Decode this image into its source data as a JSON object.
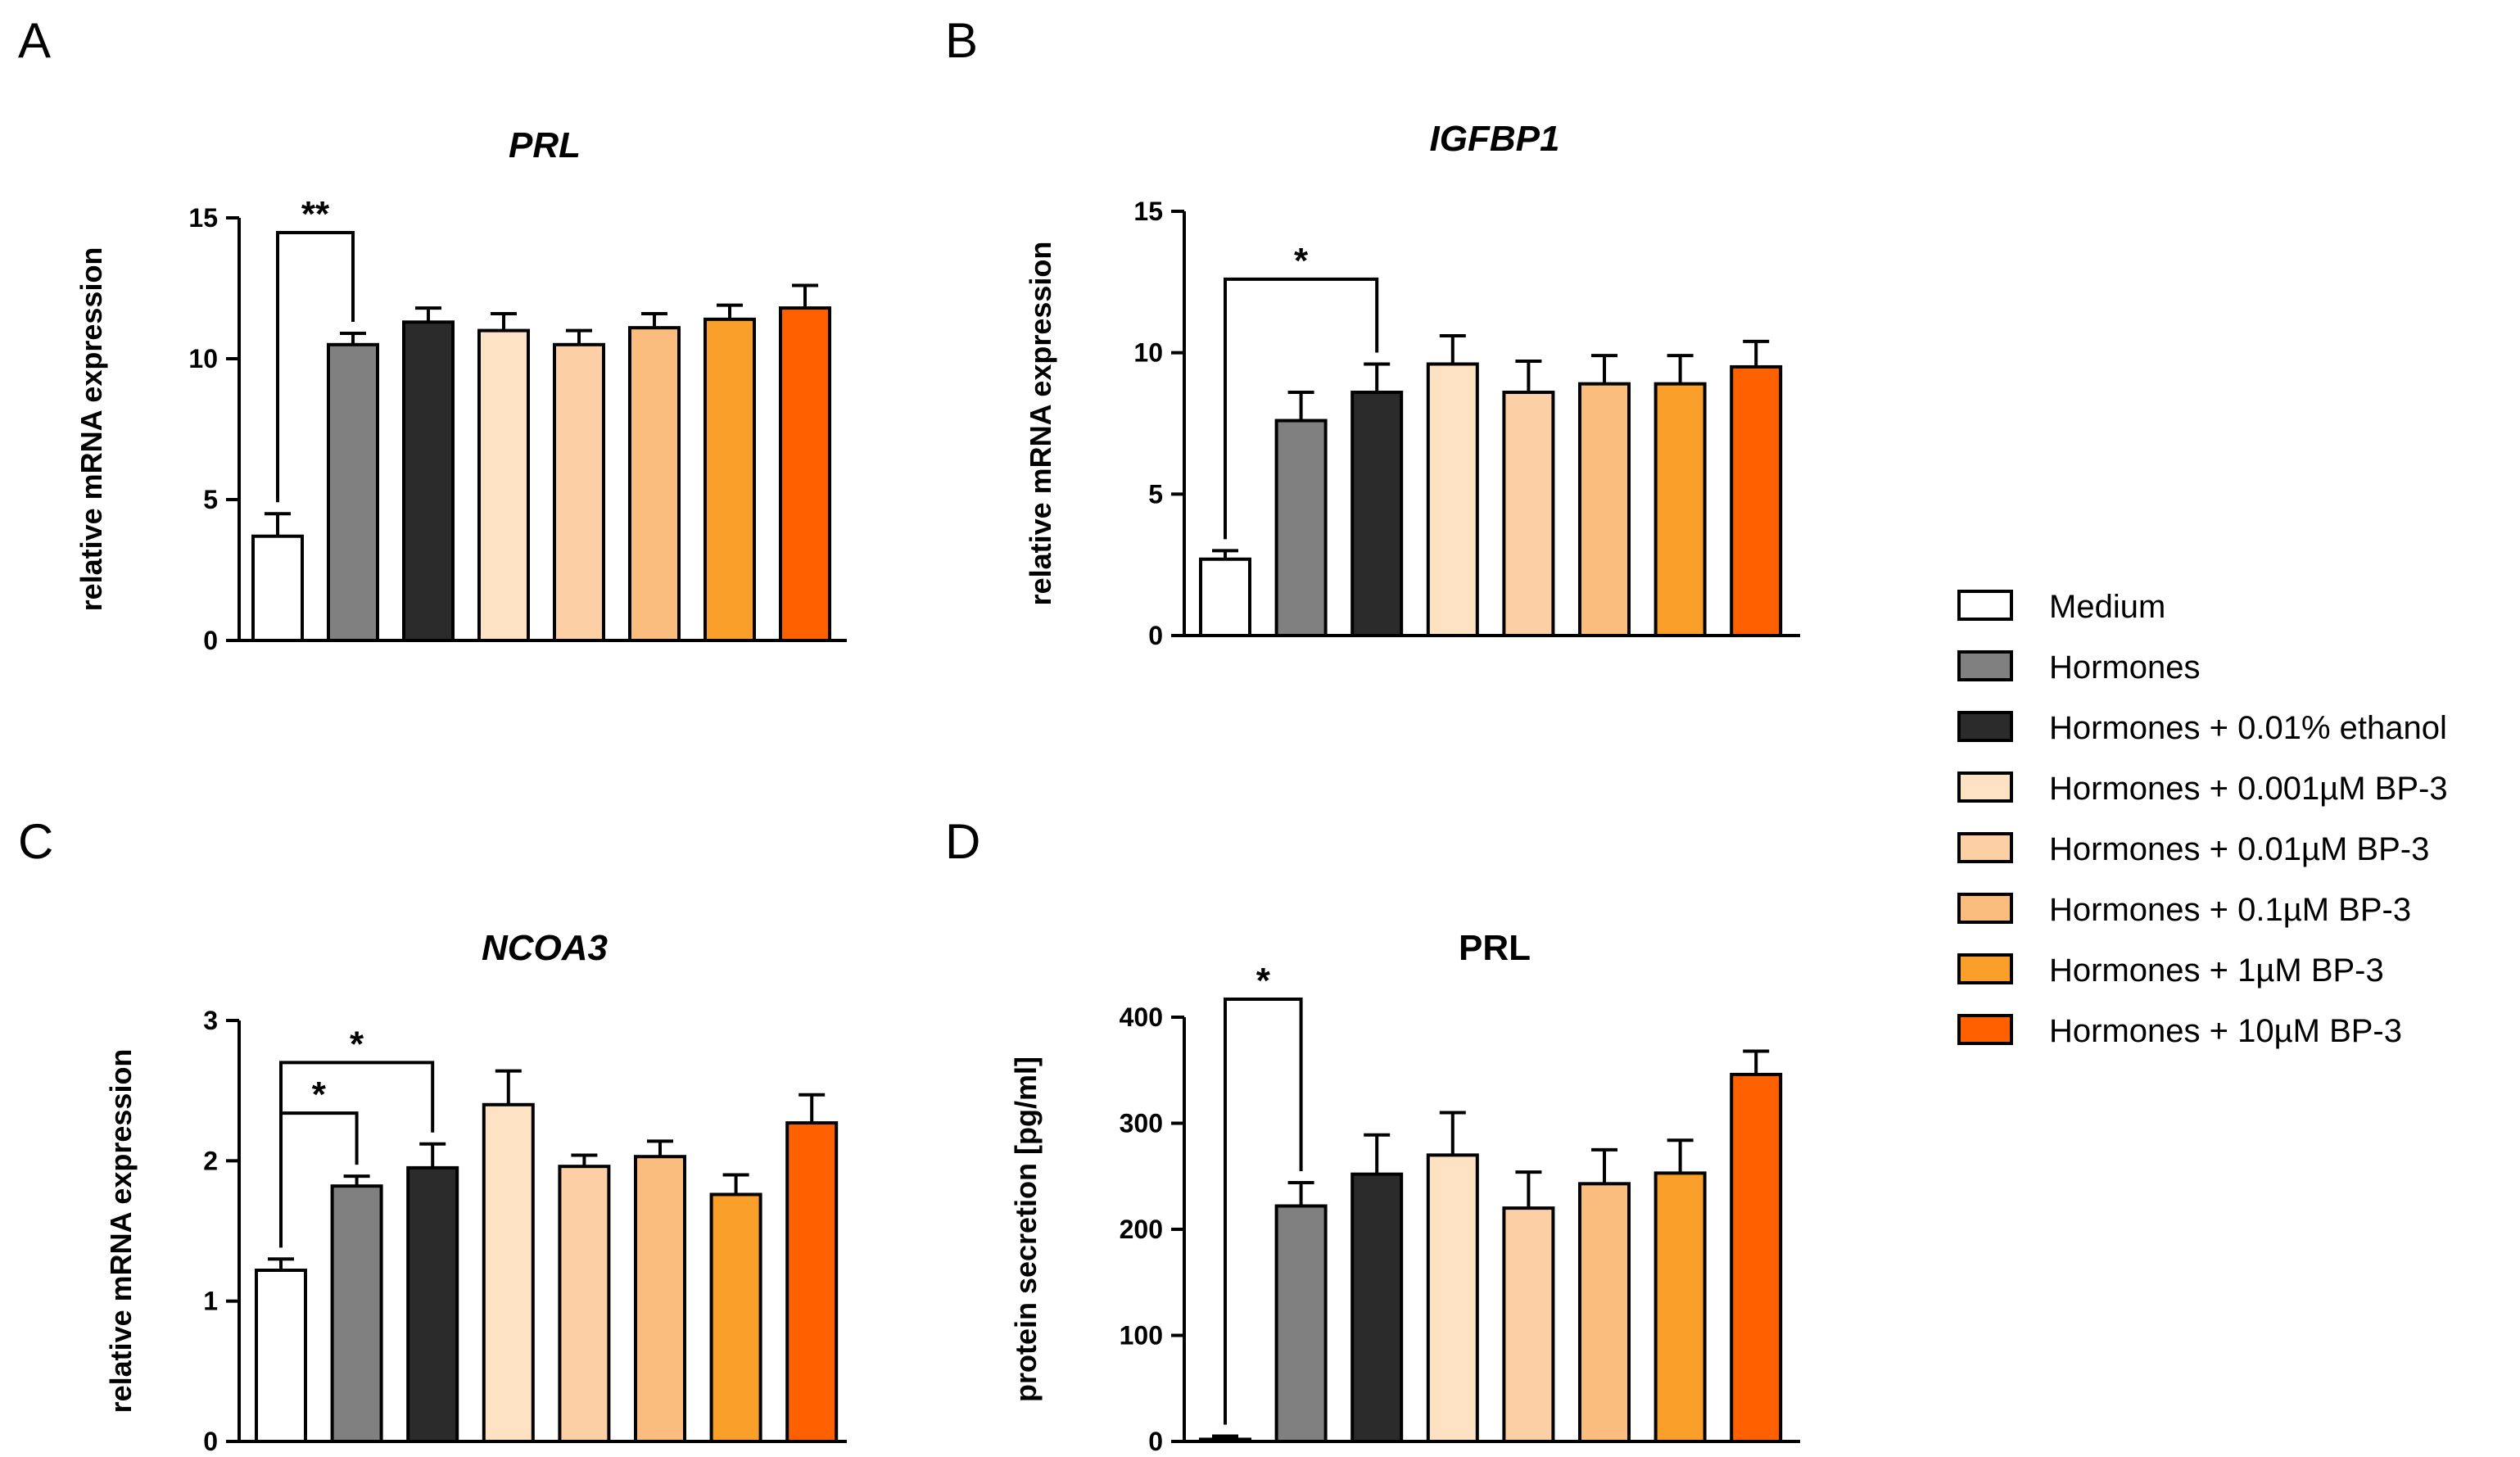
{
  "legend": {
    "placement": "right",
    "items": [
      {
        "label": "Medium",
        "color": "#ffffff"
      },
      {
        "label": "Hormones",
        "color": "#808080"
      },
      {
        "label": "Hormones + 0.01% ethanol",
        "color": "#2b2b2b"
      },
      {
        "label": "Hormones + 0.001µM BP-3",
        "color": "#fde2c4"
      },
      {
        "label": "Hormones + 0.01µM BP-3",
        "color": "#fcd0a4"
      },
      {
        "label": "Hormones + 0.1µM BP-3",
        "color": "#fbbd7e"
      },
      {
        "label": "Hormones + 1µM BP-3",
        "color": "#fa9f2a"
      },
      {
        "label": "Hormones + 10µM BP-3",
        "color": "#ff6000"
      }
    ]
  },
  "chart_data": [
    {
      "panel": "A",
      "type": "bar",
      "title": "PRL",
      "title_italic": true,
      "xlabel": "",
      "ylabel": "relative mRNA expression",
      "ylim": [
        0,
        15
      ],
      "yticks": [
        0,
        5,
        10,
        15
      ],
      "values": [
        3.7,
        10.5,
        11.3,
        11.0,
        10.5,
        11.1,
        11.4,
        11.8
      ],
      "errors": [
        0.8,
        0.4,
        0.5,
        0.6,
        0.5,
        0.5,
        0.5,
        0.8
      ],
      "significance": [
        {
          "from": 0,
          "to": 1,
          "label": "**"
        }
      ]
    },
    {
      "panel": "B",
      "type": "bar",
      "title": "IGFBP1",
      "title_italic": true,
      "xlabel": "",
      "ylabel": "relative mRNA expression",
      "ylim": [
        0,
        15
      ],
      "yticks": [
        0,
        5,
        10,
        15
      ],
      "values": [
        2.7,
        7.6,
        8.6,
        9.6,
        8.6,
        8.9,
        8.9,
        9.5
      ],
      "errors": [
        0.3,
        1.0,
        1.0,
        1.0,
        1.1,
        1.0,
        1.0,
        0.9
      ],
      "significance": [
        {
          "from": 0,
          "to": 2,
          "label": "*"
        }
      ]
    },
    {
      "panel": "C",
      "type": "bar",
      "title": "NCOA3",
      "title_italic": true,
      "xlabel": "",
      "ylabel": "relative mRNA expression",
      "ylim": [
        0,
        3
      ],
      "yticks": [
        0,
        1,
        2,
        3
      ],
      "values": [
        1.22,
        1.82,
        1.95,
        2.4,
        1.96,
        2.03,
        1.76,
        2.27
      ],
      "errors": [
        0.08,
        0.07,
        0.17,
        0.24,
        0.08,
        0.11,
        0.14,
        0.2
      ],
      "significance": [
        {
          "from": 0,
          "to": 1,
          "label": "*"
        },
        {
          "from": 0,
          "to": 2,
          "label": "*"
        }
      ]
    },
    {
      "panel": "D",
      "type": "bar",
      "title": "PRL",
      "title_italic": false,
      "xlabel": "",
      "ylabel": "protein secretion [pg/ml]",
      "ylim": [
        0,
        400
      ],
      "yticks": [
        0,
        100,
        200,
        300,
        400
      ],
      "values": [
        2,
        222,
        252,
        270,
        220,
        243,
        253,
        346
      ],
      "errors": [
        3,
        22,
        37,
        40,
        34,
        32,
        31,
        22
      ],
      "significance": [
        {
          "from": 0,
          "to": 1,
          "label": "*"
        }
      ]
    }
  ]
}
